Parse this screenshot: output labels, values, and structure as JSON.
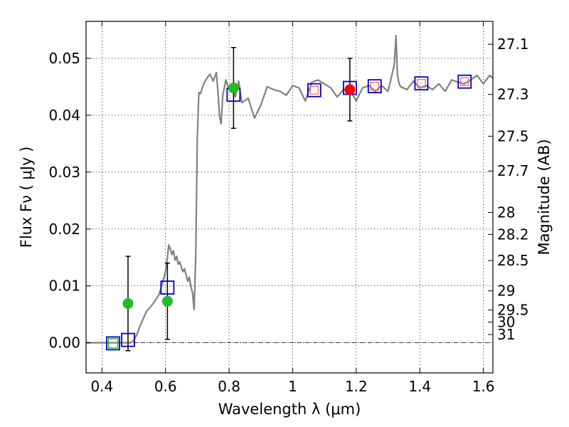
{
  "chart_data": {
    "type": "scatter",
    "xlabel": "Wavelength  λ (μm)",
    "ylabel": "Flux  Fν  ( μJy )",
    "ylabel_right": "Magnitude (AB)",
    "xlim": [
      0.35,
      1.63
    ],
    "ylim": [
      -0.0053,
      0.0565
    ],
    "grid": true,
    "x_ticks": [
      0.4,
      0.6,
      0.8,
      1.0,
      1.2,
      1.4,
      1.6
    ],
    "x_tick_labels": [
      "0.4",
      "0.6",
      "0.8",
      "1",
      "1.2",
      "1.4",
      "1.6"
    ],
    "y_ticks": [
      0.0,
      0.01,
      0.02,
      0.03,
      0.04,
      0.05
    ],
    "y_tick_labels": [
      "0.00",
      "0.01",
      "0.02",
      "0.03",
      "0.04",
      "0.05"
    ],
    "magnitude_ticks": [
      "27.1",
      "27.3",
      "27.5",
      "27.7",
      "28",
      "28.2",
      "28.5",
      "29",
      "29.5",
      "30",
      "31"
    ],
    "magnitude_zero_point": 23.9,
    "colors": {
      "model": "#808080",
      "green": "#22bb22",
      "red": "#ff0000",
      "blue_square": "#0000cc",
      "red_square": "#ff6666",
      "green_square": "#22bb22"
    },
    "series": [
      {
        "name": "model SED",
        "kind": "line",
        "x": [
          0.35,
          0.49,
          0.5,
          0.51,
          0.52,
          0.54,
          0.56,
          0.58,
          0.585,
          0.59,
          0.6,
          0.605,
          0.61,
          0.615,
          0.62,
          0.625,
          0.63,
          0.635,
          0.64,
          0.645,
          0.65,
          0.655,
          0.66,
          0.665,
          0.67,
          0.675,
          0.68,
          0.685,
          0.69,
          0.695,
          0.7,
          0.705,
          0.71,
          0.72,
          0.73,
          0.74,
          0.75,
          0.76,
          0.765,
          0.77,
          0.775,
          0.78,
          0.79,
          0.8,
          0.81,
          0.82,
          0.83,
          0.84,
          0.86,
          0.88,
          0.9,
          0.92,
          0.94,
          0.96,
          0.98,
          1.0,
          1.02,
          1.04,
          1.06,
          1.08,
          1.1,
          1.12,
          1.14,
          1.16,
          1.18,
          1.19,
          1.2,
          1.22,
          1.24,
          1.26,
          1.28,
          1.3,
          1.31,
          1.32,
          1.325,
          1.33,
          1.335,
          1.34,
          1.36,
          1.38,
          1.4,
          1.42,
          1.44,
          1.46,
          1.48,
          1.5,
          1.52,
          1.54,
          1.56,
          1.58,
          1.6,
          1.62,
          1.63
        ],
        "y": [
          0.0,
          0.0,
          0.0004,
          0.0015,
          0.003,
          0.0055,
          0.0068,
          0.0085,
          0.0095,
          0.0105,
          0.0125,
          0.0145,
          0.0172,
          0.0165,
          0.0155,
          0.0162,
          0.0145,
          0.0152,
          0.0138,
          0.0142,
          0.0132,
          0.0125,
          0.013,
          0.0118,
          0.0108,
          0.0115,
          0.0098,
          0.0088,
          0.0058,
          0.015,
          0.036,
          0.044,
          0.0438,
          0.0455,
          0.0465,
          0.0472,
          0.046,
          0.0475,
          0.044,
          0.0398,
          0.0385,
          0.0435,
          0.0462,
          0.0445,
          0.0452,
          0.0432,
          0.046,
          0.0422,
          0.043,
          0.0395,
          0.0418,
          0.045,
          0.0445,
          0.0442,
          0.0435,
          0.0452,
          0.0448,
          0.0425,
          0.0458,
          0.0462,
          0.0455,
          0.0448,
          0.0432,
          0.0445,
          0.0442,
          0.0435,
          0.0425,
          0.0448,
          0.0452,
          0.0442,
          0.0452,
          0.0442,
          0.0465,
          0.049,
          0.054,
          0.047,
          0.0455,
          0.045,
          0.0445,
          0.046,
          0.0448,
          0.0452,
          0.0445,
          0.0455,
          0.0442,
          0.0462,
          0.0458,
          0.0455,
          0.0462,
          0.047,
          0.0455,
          0.047,
          0.0465
        ]
      },
      {
        "name": "observed (green)",
        "kind": "points",
        "x": [
          0.482,
          0.606,
          0.814
        ],
        "y": [
          0.0069,
          0.0073,
          0.0448
        ],
        "yerr": [
          0.0083,
          0.0067,
          0.0071
        ]
      },
      {
        "name": "observed (red)",
        "kind": "points",
        "x": [
          1.18
        ],
        "y": [
          0.0445
        ],
        "yerr": [
          0.0055
        ]
      },
      {
        "name": "model photometry (blue squares)",
        "kind": "squares",
        "x": [
          0.435,
          0.482,
          0.606,
          0.814,
          1.068,
          1.18,
          1.258,
          1.405,
          1.541
        ],
        "y": [
          -0.0001,
          0.0005,
          0.0097,
          0.0436,
          0.0444,
          0.0448,
          0.0451,
          0.0456,
          0.0459
        ]
      },
      {
        "name": "red squares",
        "kind": "squares",
        "x": [
          1.068,
          1.258,
          1.405,
          1.541
        ],
        "y": [
          0.0444,
          0.0451,
          0.0456,
          0.0459
        ]
      },
      {
        "name": "green square",
        "kind": "squares",
        "x": [
          0.435
        ],
        "y": [
          -0.0001
        ]
      }
    ]
  }
}
